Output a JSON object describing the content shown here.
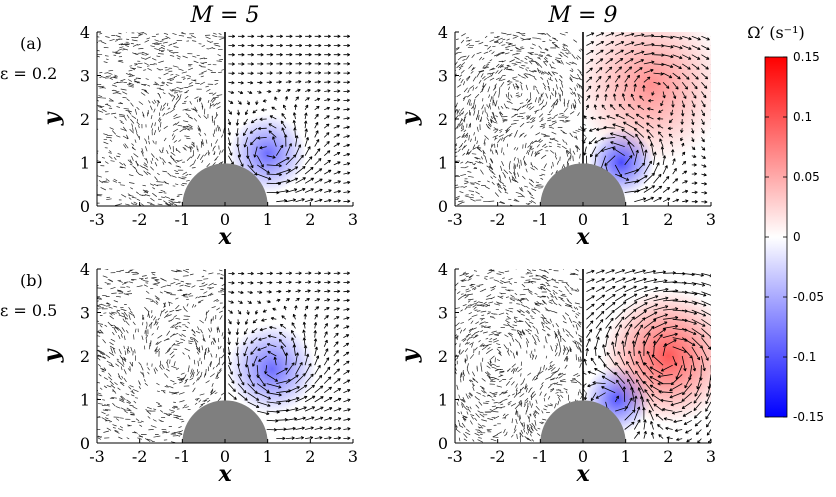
{
  "chart_data": {
    "type": "vector field",
    "column_titles": [
      "M = 5",
      "M = 9"
    ],
    "row_labels": [
      {
        "panel": "(a)",
        "param": "ε = 0.2"
      },
      {
        "panel": "(b)",
        "param": "ε = 0.5"
      }
    ],
    "xlabel": "x",
    "ylabel": "y",
    "xlim": [
      -3,
      3
    ],
    "ylim": [
      0,
      4
    ],
    "x_ticks": [
      "-3",
      "-2",
      "-1",
      "0",
      "1",
      "2",
      "3"
    ],
    "y_ticks": [
      "0",
      "1",
      "2",
      "3",
      "4"
    ],
    "obstacle": {
      "shape": "half-disc",
      "center_x": 0,
      "center_y": 0,
      "radius": 1,
      "color": "#7f7f7f"
    },
    "left_half": "particle pathlines (black)",
    "right_half": "velocity vectors over vorticity fluctuation Ω′",
    "panels": [
      {
        "row": 0,
        "col": 0,
        "M": 5,
        "epsilon": 0.2,
        "vortices": [
          {
            "x": 1.0,
            "y": 1.2,
            "strength": 1.0,
            "r": 0.7
          }
        ]
      },
      {
        "row": 0,
        "col": 1,
        "M": 9,
        "epsilon": 0.2,
        "vortices": [
          {
            "x": 0.9,
            "y": 1.0,
            "strength": 1.6,
            "r": 0.6
          },
          {
            "x": 1.6,
            "y": 2.8,
            "strength": -0.4,
            "r": 1.4
          }
        ]
      },
      {
        "row": 1,
        "col": 0,
        "M": 5,
        "epsilon": 0.5,
        "vortices": [
          {
            "x": 1.1,
            "y": 1.7,
            "strength": 1.0,
            "r": 0.8
          }
        ]
      },
      {
        "row": 1,
        "col": 1,
        "M": 9,
        "epsilon": 0.5,
        "vortices": [
          {
            "x": 0.8,
            "y": 1.0,
            "strength": 1.4,
            "r": 0.6
          },
          {
            "x": 2.0,
            "y": 2.0,
            "strength": -1.4,
            "r": 1.2
          }
        ]
      }
    ],
    "colorbar": {
      "label": "Ω′ (s⁻¹)",
      "ticks": [
        "0.15",
        "0.1",
        "0.05",
        "0",
        "-0.05",
        "-0.1",
        "-0.15"
      ],
      "range": [
        -0.15,
        0.15
      ],
      "colors": {
        "low": "#0000ff",
        "mid": "#ffffff",
        "high": "#ff0000"
      }
    }
  }
}
